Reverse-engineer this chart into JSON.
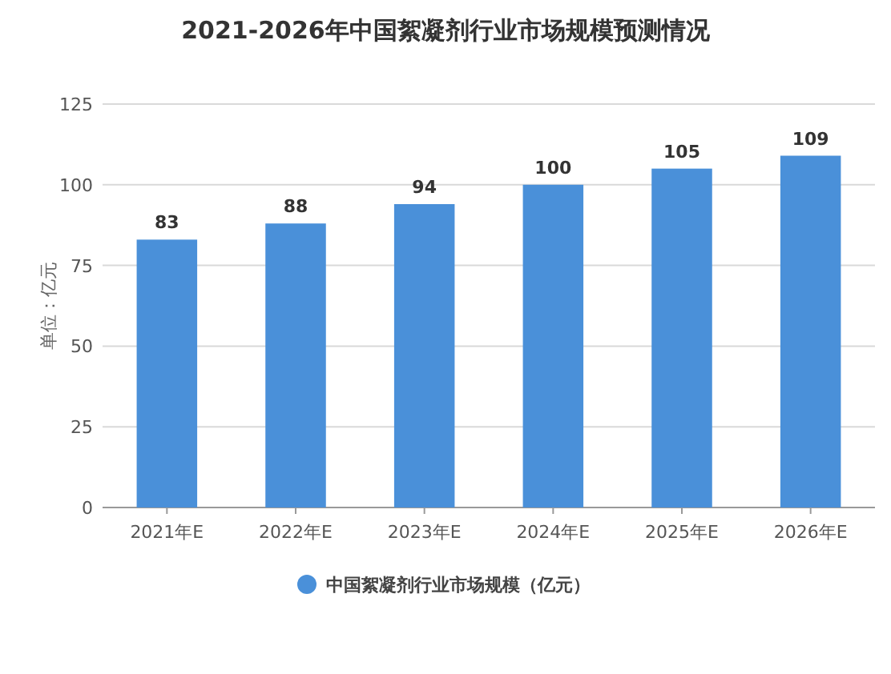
{
  "chart_data": {
    "type": "bar",
    "title": "2021-2026年中国絮凝剂行业市场规模预测情况",
    "ylabel": "单位：亿元",
    "categories": [
      "2021年E",
      "2022年E",
      "2023年E",
      "2024年E",
      "2025年E",
      "2026年E"
    ],
    "series": [
      {
        "name": "中国絮凝剂行业市场规模（亿元）",
        "color": "#4a90d9",
        "values": [
          83,
          88,
          94,
          100,
          105,
          109
        ]
      }
    ],
    "ylim": [
      0,
      125
    ],
    "yticks": [
      0,
      25,
      50,
      75,
      100,
      125
    ],
    "grid": "y",
    "legend": "bottom",
    "data_labels": true
  }
}
